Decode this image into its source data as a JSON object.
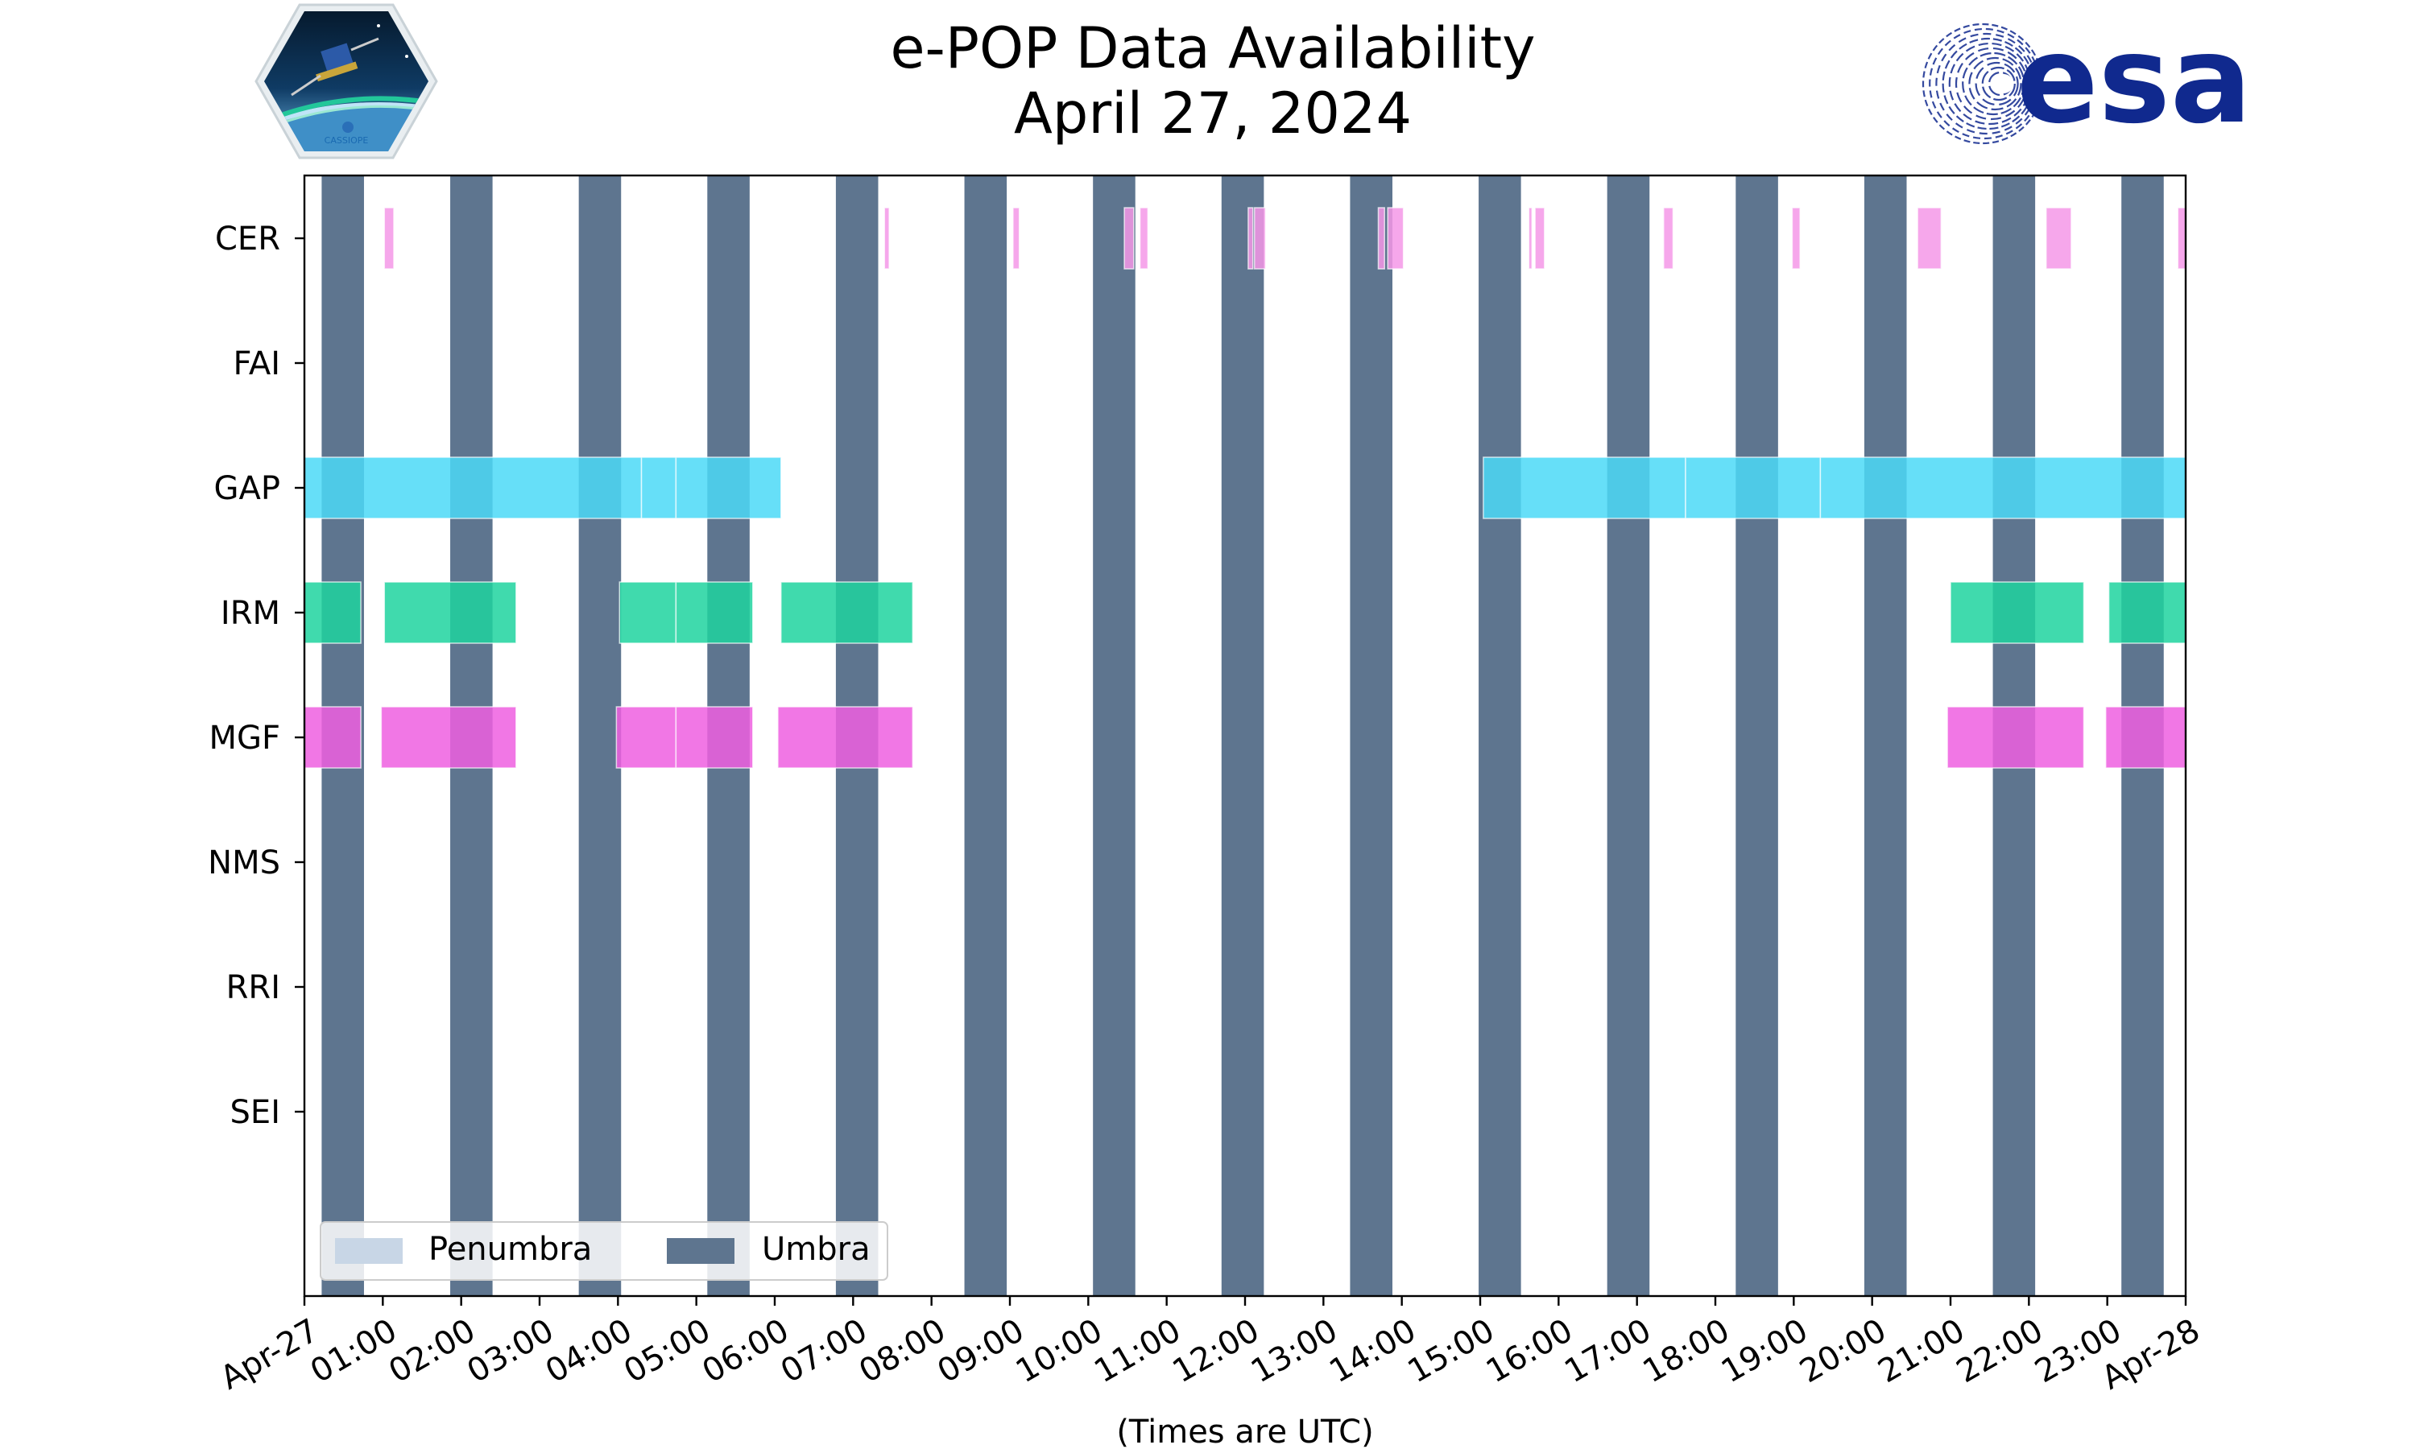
{
  "chart_data": {
    "type": "timeline",
    "title": [
      "e-POP Data Availability",
      "April 27, 2024"
    ],
    "xlabel": "(Times are UTC)",
    "x_range_hours": [
      0,
      24
    ],
    "x_ticks": [
      {
        "hour": 0,
        "label": "Apr-27"
      },
      {
        "hour": 1,
        "label": "01:00"
      },
      {
        "hour": 2,
        "label": "02:00"
      },
      {
        "hour": 3,
        "label": "03:00"
      },
      {
        "hour": 4,
        "label": "04:00"
      },
      {
        "hour": 5,
        "label": "05:00"
      },
      {
        "hour": 6,
        "label": "06:00"
      },
      {
        "hour": 7,
        "label": "07:00"
      },
      {
        "hour": 8,
        "label": "08:00"
      },
      {
        "hour": 9,
        "label": "09:00"
      },
      {
        "hour": 10,
        "label": "10:00"
      },
      {
        "hour": 11,
        "label": "11:00"
      },
      {
        "hour": 12,
        "label": "12:00"
      },
      {
        "hour": 13,
        "label": "13:00"
      },
      {
        "hour": 14,
        "label": "14:00"
      },
      {
        "hour": 15,
        "label": "15:00"
      },
      {
        "hour": 16,
        "label": "16:00"
      },
      {
        "hour": 17,
        "label": "17:00"
      },
      {
        "hour": 18,
        "label": "18:00"
      },
      {
        "hour": 19,
        "label": "19:00"
      },
      {
        "hour": 20,
        "label": "20:00"
      },
      {
        "hour": 21,
        "label": "21:00"
      },
      {
        "hour": 22,
        "label": "22:00"
      },
      {
        "hour": 23,
        "label": "23:00"
      },
      {
        "hour": 24,
        "label": "Apr-28"
      }
    ],
    "instruments": [
      "CER",
      "FAI",
      "GAP",
      "IRM",
      "MGF",
      "NMS",
      "RRI",
      "SEI"
    ],
    "umbra_color": "#5e758f",
    "umbra_intervals_hours": [
      [
        0.22,
        0.76
      ],
      [
        1.86,
        2.4
      ],
      [
        3.5,
        4.04
      ],
      [
        5.14,
        5.68
      ],
      [
        6.78,
        7.32
      ],
      [
        8.42,
        8.96
      ],
      [
        10.06,
        10.6
      ],
      [
        11.7,
        12.24
      ],
      [
        13.34,
        13.88
      ],
      [
        14.98,
        15.52
      ],
      [
        16.62,
        17.16
      ],
      [
        18.26,
        18.8
      ],
      [
        19.9,
        20.44
      ],
      [
        21.54,
        22.08
      ],
      [
        23.18,
        23.72
      ]
    ],
    "series": [
      {
        "name": "CER",
        "color": "#f598e8",
        "intervals_hours": [
          [
            1.02,
            1.14
          ],
          [
            7.4,
            7.46
          ],
          [
            9.04,
            9.12
          ],
          [
            10.46,
            10.58
          ],
          [
            10.66,
            10.76
          ],
          [
            12.04,
            12.1
          ],
          [
            12.12,
            12.26
          ],
          [
            13.7,
            13.78
          ],
          [
            13.82,
            14.02
          ],
          [
            15.62,
            15.66
          ],
          [
            15.7,
            15.82
          ],
          [
            17.34,
            17.46
          ],
          [
            18.98,
            19.08
          ],
          [
            20.58,
            20.88
          ],
          [
            22.22,
            22.54
          ],
          [
            23.9,
            24.0
          ]
        ]
      },
      {
        "name": "FAI",
        "color": "#cccccc",
        "intervals_hours": []
      },
      {
        "name": "GAP",
        "color": "#4bd9f7",
        "intervals_hours": [
          [
            0.0,
            4.3
          ],
          [
            4.3,
            4.74
          ],
          [
            4.74,
            6.08
          ],
          [
            15.04,
            17.62
          ],
          [
            17.62,
            19.34
          ],
          [
            19.34,
            24.0
          ]
        ]
      },
      {
        "name": "IRM",
        "color": "#1ed39f",
        "intervals_hours": [
          [
            0.0,
            0.72
          ],
          [
            1.02,
            2.7
          ],
          [
            4.02,
            4.74
          ],
          [
            4.74,
            5.72
          ],
          [
            6.08,
            7.76
          ],
          [
            21.0,
            22.7
          ],
          [
            23.02,
            24.0
          ]
        ]
      },
      {
        "name": "MGF",
        "color": "#ee5fe0",
        "intervals_hours": [
          [
            0.0,
            0.72
          ],
          [
            0.98,
            2.7
          ],
          [
            3.98,
            4.74
          ],
          [
            4.74,
            5.72
          ],
          [
            6.04,
            7.76
          ],
          [
            20.96,
            22.7
          ],
          [
            22.98,
            24.0
          ]
        ]
      },
      {
        "name": "NMS",
        "color": "#cccccc",
        "intervals_hours": []
      },
      {
        "name": "RRI",
        "color": "#cccccc",
        "intervals_hours": []
      },
      {
        "name": "SEI",
        "color": "#cccccc",
        "intervals_hours": []
      }
    ],
    "legend": {
      "placement": "lower-left",
      "entries": [
        {
          "label": "Penumbra",
          "color": "#c8d6e6"
        },
        {
          "label": "Umbra",
          "color": "#5e758f"
        }
      ]
    },
    "logos": {
      "left": {
        "name": "cassiope-mission-patch",
        "text": "CASSIOPE"
      },
      "right": {
        "name": "esa-logo",
        "text": "esa",
        "color": "#10298e"
      }
    }
  }
}
